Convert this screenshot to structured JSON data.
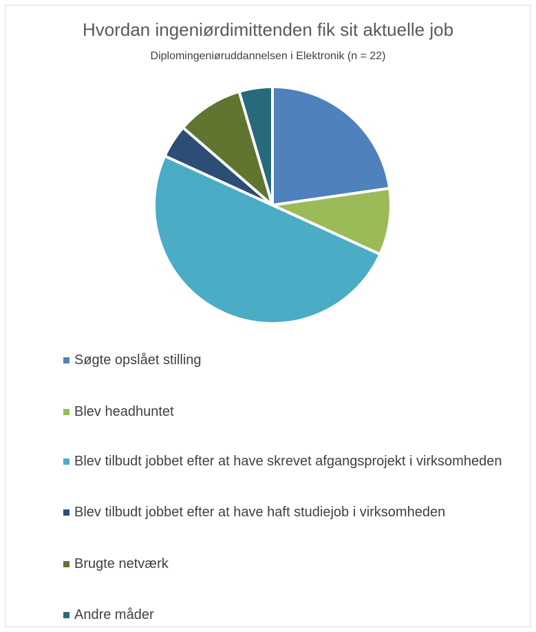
{
  "chart_data": {
    "type": "pie",
    "title": "Hvordan ingeniørdimittenden fik sit aktuelle job",
    "subtitle": "Diplomingeniøruddannelsen i Elektronik  (n = 22)",
    "legend_position": "bottom",
    "series": [
      {
        "labels": [
          "Søgte opslået stilling",
          "Blev headhuntet",
          "Blev tilbudt jobbet efter at have skrevet afgangsprojekt i virksomheden",
          "Blev tilbudt jobbet efter at have haft studiejob i virksomheden",
          "Brugte netværk",
          "Andre måder"
        ],
        "values": [
          5,
          2,
          11,
          1,
          2,
          1
        ],
        "colors": [
          "#4f81bd",
          "#9bbb59",
          "#4bacc6",
          "#2c4d75",
          "#5f7530",
          "#276a7c"
        ]
      }
    ]
  }
}
